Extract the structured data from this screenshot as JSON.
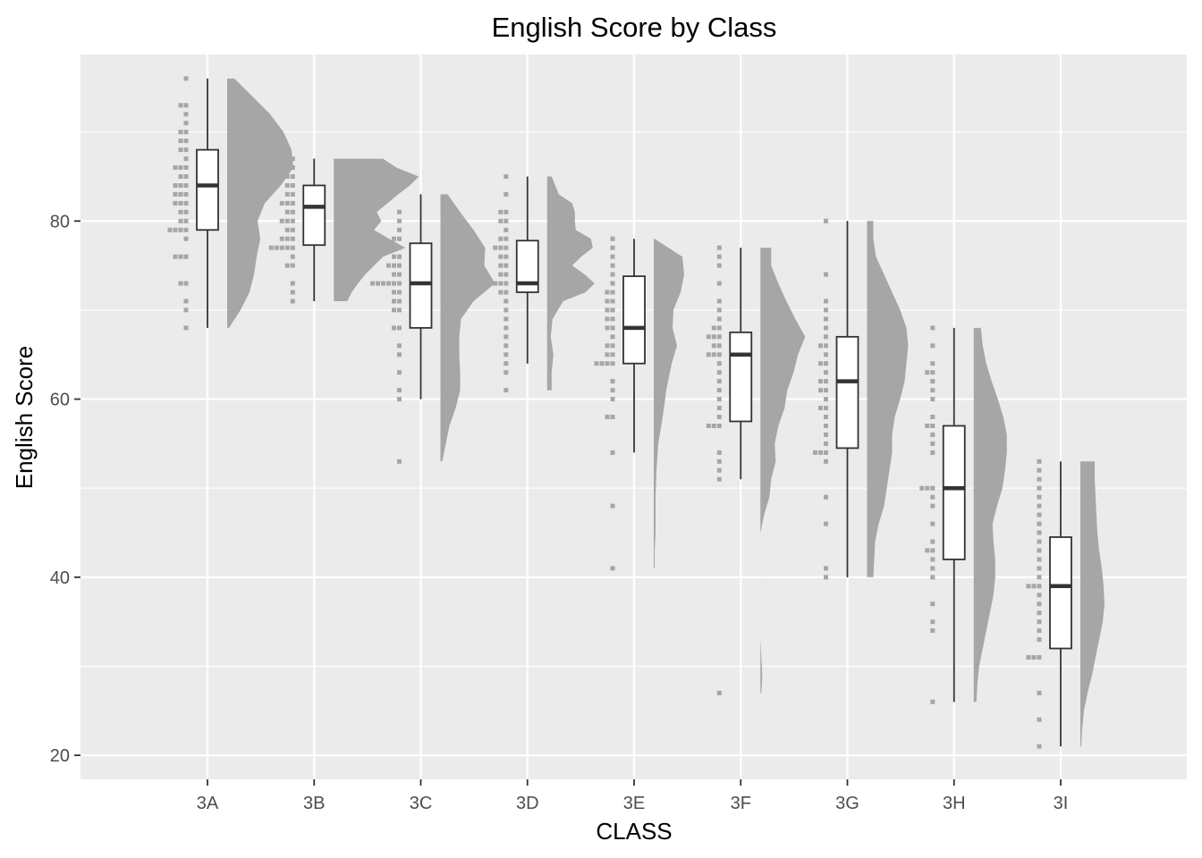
{
  "chart_data": {
    "type": "raincloud",
    "title": "English Score by Class",
    "xlabel": "CLASS",
    "ylabel": "English Score",
    "ylim": [
      17.3,
      98.7
    ],
    "y_ticks": [
      20,
      40,
      60,
      80
    ],
    "grid": true,
    "legend": "none",
    "colors": {
      "panel": "#ebebeb",
      "grid": "#ffffff",
      "cloud": "#a6a6a6",
      "rain": "#a6a6a6",
      "box_fill": "#ffffff",
      "box_line": "#333333",
      "tick_text": "#4d4d4d"
    },
    "categories": [
      "3A",
      "3B",
      "3C",
      "3D",
      "3E",
      "3F",
      "3G",
      "3H",
      "3I"
    ],
    "classes": [
      {
        "name": "3A",
        "box": {
          "min": 68,
          "q1": 79,
          "median": 84,
          "q3": 88,
          "max": 96
        },
        "density": [
          [
            68,
            0.02
          ],
          [
            70,
            0.15
          ],
          [
            72,
            0.25
          ],
          [
            74,
            0.3
          ],
          [
            76,
            0.33
          ],
          [
            78,
            0.37
          ],
          [
            80,
            0.34
          ],
          [
            82,
            0.42
          ],
          [
            84,
            0.6
          ],
          [
            86,
            0.74
          ],
          [
            88,
            0.72
          ],
          [
            90,
            0.63
          ],
          [
            92,
            0.48
          ],
          [
            94,
            0.28
          ],
          [
            96,
            0.08
          ]
        ],
        "scores": [
          68,
          70,
          71,
          73,
          73,
          76,
          76,
          76,
          78,
          79,
          79,
          79,
          79,
          80,
          80,
          81,
          81,
          82,
          82,
          82,
          83,
          83,
          83,
          84,
          84,
          84,
          85,
          85,
          86,
          86,
          86,
          87,
          88,
          88,
          89,
          89,
          90,
          90,
          91,
          92,
          93,
          93,
          96
        ]
      },
      {
        "name": "3B",
        "box": {
          "min": 71,
          "q1": 77.3,
          "median": 81.6,
          "q3": 84,
          "max": 87
        },
        "density": [
          [
            71,
            0.15
          ],
          [
            72,
            0.2
          ],
          [
            73,
            0.27
          ],
          [
            74,
            0.35
          ],
          [
            75,
            0.45
          ],
          [
            76,
            0.55
          ],
          [
            77,
            0.8
          ],
          [
            78,
            0.62
          ],
          [
            79,
            0.45
          ],
          [
            80,
            0.53
          ],
          [
            81,
            0.48
          ],
          [
            82,
            0.6
          ],
          [
            83,
            0.72
          ],
          [
            84,
            0.85
          ],
          [
            85,
            0.95
          ],
          [
            86,
            0.7
          ],
          [
            87,
            0.55
          ]
        ],
        "scores": [
          71,
          72,
          73,
          75,
          75,
          76,
          77,
          77,
          77,
          77,
          77,
          78,
          78,
          78,
          79,
          79,
          80,
          80,
          80,
          81,
          81,
          82,
          82,
          82,
          83,
          83,
          84,
          84,
          85,
          85,
          86,
          86,
          87
        ]
      },
      {
        "name": "3C",
        "box": {
          "min": 60,
          "q1": 68,
          "median": 73,
          "q3": 77.5,
          "max": 83
        },
        "density": [
          [
            53,
            0.02
          ],
          [
            55,
            0.06
          ],
          [
            57,
            0.1
          ],
          [
            59,
            0.17
          ],
          [
            61,
            0.22
          ],
          [
            63,
            0.22
          ],
          [
            65,
            0.21
          ],
          [
            67,
            0.21
          ],
          [
            69,
            0.23
          ],
          [
            71,
            0.37
          ],
          [
            73,
            0.61
          ],
          [
            75,
            0.49
          ],
          [
            77,
            0.5
          ],
          [
            79,
            0.37
          ],
          [
            81,
            0.22
          ],
          [
            83,
            0.08
          ]
        ],
        "scores": [
          53,
          60,
          61,
          63,
          65,
          66,
          68,
          68,
          70,
          70,
          71,
          71,
          72,
          72,
          73,
          73,
          73,
          73,
          73,
          73,
          74,
          74,
          75,
          75,
          75,
          76,
          76,
          77,
          77,
          78,
          78,
          79,
          80,
          81
        ]
      },
      {
        "name": "3D",
        "box": {
          "min": 64,
          "q1": 72,
          "median": 73,
          "q3": 77.8,
          "max": 85
        },
        "density": [
          [
            61,
            0.05
          ],
          [
            63,
            0.05
          ],
          [
            65,
            0.07
          ],
          [
            67,
            0.04
          ],
          [
            69,
            0.06
          ],
          [
            71,
            0.18
          ],
          [
            72,
            0.43
          ],
          [
            73,
            0.53
          ],
          [
            74,
            0.42
          ],
          [
            75,
            0.28
          ],
          [
            76,
            0.38
          ],
          [
            77,
            0.51
          ],
          [
            78,
            0.49
          ],
          [
            79,
            0.32
          ],
          [
            80,
            0.31
          ],
          [
            81,
            0.31
          ],
          [
            82,
            0.28
          ],
          [
            83,
            0.13
          ],
          [
            85,
            0.05
          ]
        ],
        "scores": [
          61,
          63,
          64,
          65,
          66,
          67,
          68,
          69,
          70,
          71,
          72,
          72,
          73,
          73,
          73,
          73,
          74,
          74,
          75,
          75,
          76,
          76,
          77,
          77,
          77,
          78,
          78,
          79,
          80,
          80,
          81,
          81,
          83,
          85
        ]
      },
      {
        "name": "3E",
        "box": {
          "min": 54,
          "q1": 64,
          "median": 68,
          "q3": 73.8,
          "max": 78
        },
        "density": [
          [
            41,
            0.01
          ],
          [
            43,
            0.01
          ],
          [
            45,
            0.02
          ],
          [
            47,
            0.02
          ],
          [
            49,
            0.02
          ],
          [
            52,
            0.03
          ],
          [
            55,
            0.05
          ],
          [
            58,
            0.1
          ],
          [
            61,
            0.14
          ],
          [
            64,
            0.2
          ],
          [
            66,
            0.26
          ],
          [
            68,
            0.21
          ],
          [
            70,
            0.22
          ],
          [
            72,
            0.3
          ],
          [
            74,
            0.34
          ],
          [
            76,
            0.32
          ],
          [
            78,
            0.01
          ]
        ],
        "scores": [
          41,
          48,
          54,
          58,
          58,
          60,
          61,
          62,
          64,
          64,
          64,
          64,
          65,
          65,
          66,
          66,
          67,
          68,
          68,
          69,
          69,
          70,
          70,
          71,
          71,
          72,
          72,
          73,
          74,
          75,
          76,
          77,
          78
        ]
      },
      {
        "name": "3F",
        "box": {
          "min": 51,
          "q1": 57.5,
          "median": 65,
          "q3": 67.5,
          "max": 77
        },
        "density": [
          [
            27,
            0.01
          ],
          [
            29,
            0.02
          ],
          [
            31,
            0.01
          ],
          [
            33,
            0.0
          ],
          [
            45,
            0.0
          ],
          [
            47,
            0.04
          ],
          [
            49,
            0.1
          ],
          [
            51,
            0.12
          ],
          [
            53,
            0.17
          ],
          [
            55,
            0.16
          ],
          [
            57,
            0.2
          ],
          [
            59,
            0.27
          ],
          [
            61,
            0.3
          ],
          [
            63,
            0.37
          ],
          [
            65,
            0.42
          ],
          [
            67,
            0.5
          ],
          [
            69,
            0.39
          ],
          [
            71,
            0.29
          ],
          [
            73,
            0.2
          ],
          [
            75,
            0.12
          ],
          [
            77,
            0.12
          ]
        ],
        "scores": [
          27,
          51,
          52,
          53,
          54,
          57,
          57,
          57,
          58,
          59,
          60,
          61,
          62,
          63,
          64,
          65,
          65,
          65,
          66,
          66,
          67,
          67,
          67,
          68,
          68,
          69,
          70,
          71,
          73,
          75,
          76,
          77
        ]
      },
      {
        "name": "3G",
        "box": {
          "min": 40,
          "q1": 54.5,
          "median": 62,
          "q3": 67,
          "max": 80
        },
        "density": [
          [
            40,
            0.07
          ],
          [
            42,
            0.08
          ],
          [
            44,
            0.09
          ],
          [
            46,
            0.13
          ],
          [
            48,
            0.19
          ],
          [
            50,
            0.22
          ],
          [
            52,
            0.25
          ],
          [
            54,
            0.28
          ],
          [
            56,
            0.28
          ],
          [
            58,
            0.31
          ],
          [
            60,
            0.37
          ],
          [
            62,
            0.42
          ],
          [
            64,
            0.44
          ],
          [
            66,
            0.46
          ],
          [
            68,
            0.44
          ],
          [
            70,
            0.37
          ],
          [
            72,
            0.28
          ],
          [
            74,
            0.19
          ],
          [
            76,
            0.1
          ],
          [
            78,
            0.07
          ],
          [
            80,
            0.07
          ]
        ],
        "scores": [
          40,
          41,
          46,
          49,
          53,
          54,
          54,
          54,
          55,
          56,
          57,
          58,
          59,
          59,
          60,
          61,
          61,
          62,
          62,
          63,
          64,
          64,
          65,
          66,
          66,
          67,
          68,
          69,
          70,
          71,
          74,
          80
        ]
      },
      {
        "name": "3H",
        "box": {
          "min": 26,
          "q1": 42,
          "median": 50,
          "q3": 57,
          "max": 68
        },
        "density": [
          [
            26,
            0.03
          ],
          [
            28,
            0.04
          ],
          [
            30,
            0.06
          ],
          [
            32,
            0.1
          ],
          [
            34,
            0.14
          ],
          [
            36,
            0.18
          ],
          [
            38,
            0.22
          ],
          [
            40,
            0.24
          ],
          [
            42,
            0.24
          ],
          [
            44,
            0.22
          ],
          [
            46,
            0.21
          ],
          [
            48,
            0.26
          ],
          [
            50,
            0.32
          ],
          [
            52,
            0.35
          ],
          [
            54,
            0.37
          ],
          [
            56,
            0.37
          ],
          [
            58,
            0.33
          ],
          [
            60,
            0.27
          ],
          [
            62,
            0.2
          ],
          [
            64,
            0.14
          ],
          [
            66,
            0.1
          ],
          [
            68,
            0.08
          ]
        ],
        "scores": [
          26,
          34,
          35,
          37,
          40,
          41,
          42,
          43,
          43,
          44,
          46,
          48,
          49,
          50,
          50,
          50,
          54,
          55,
          56,
          57,
          57,
          58,
          60,
          61,
          62,
          63,
          63,
          64,
          66,
          68
        ]
      },
      {
        "name": "3I",
        "box": {
          "min": 21,
          "q1": 32,
          "median": 39,
          "q3": 44.5,
          "max": 53
        },
        "density": [
          [
            21,
            0.01
          ],
          [
            23,
            0.02
          ],
          [
            25,
            0.04
          ],
          [
            27,
            0.08
          ],
          [
            29,
            0.13
          ],
          [
            31,
            0.17
          ],
          [
            33,
            0.21
          ],
          [
            35,
            0.25
          ],
          [
            37,
            0.27
          ],
          [
            39,
            0.26
          ],
          [
            41,
            0.24
          ],
          [
            43,
            0.21
          ],
          [
            45,
            0.19
          ],
          [
            47,
            0.18
          ],
          [
            49,
            0.17
          ],
          [
            51,
            0.16
          ],
          [
            53,
            0.16
          ]
        ],
        "scores": [
          21,
          24,
          27,
          31,
          31,
          31,
          33,
          34,
          35,
          36,
          37,
          38,
          39,
          39,
          39,
          40,
          41,
          42,
          43,
          44,
          45,
          46,
          47,
          48,
          49,
          50,
          51,
          52,
          53
        ]
      }
    ]
  }
}
